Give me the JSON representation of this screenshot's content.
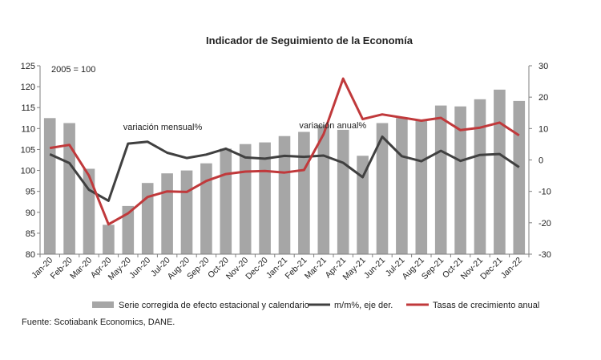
{
  "chart_data": {
    "type": "bar",
    "title": "Indicador de Seguimiento de la Economía",
    "base_note": "2005 = 100",
    "categories": [
      "Jan-20",
      "Feb-20",
      "Mar-20",
      "Apr-20",
      "May-20",
      "Jun-20",
      "Jul-20",
      "Aug-20",
      "Sep-20",
      "Oct-20",
      "Nov-20",
      "Dec-20",
      "Jan-21",
      "Feb-21",
      "Mar-21",
      "Apr-21",
      "May-21",
      "Jun-21",
      "Jul-21",
      "Aug-21",
      "Sep-21",
      "Oct-21",
      "Nov-21",
      "Dec-21",
      "Jan-22"
    ],
    "y_left": {
      "min": 80,
      "max": 125,
      "step": 5
    },
    "y_right": {
      "min": -30,
      "max": 30,
      "step": 10
    },
    "series": [
      {
        "name": "Serie corregida de efecto estacional y calendario",
        "kind": "bar",
        "axis": "left",
        "color": "#a6a6a6",
        "values": [
          112.5,
          111.3,
          100.4,
          87.0,
          91.5,
          97.0,
          99.3,
          100.0,
          101.7,
          105.2,
          106.3,
          106.7,
          108.2,
          109.2,
          110.8,
          109.7,
          103.5,
          111.3,
          112.5,
          112.1,
          115.5,
          115.3,
          117.0,
          119.3,
          116.6
        ]
      },
      {
        "name": "m/m%, eje der.",
        "kind": "line",
        "axis": "right",
        "color": "#404040",
        "values": [
          1.8,
          -1.0,
          -9.5,
          -13.0,
          5.2,
          5.8,
          2.3,
          0.6,
          1.7,
          3.6,
          0.8,
          0.4,
          1.3,
          1.0,
          1.4,
          -0.9,
          -5.5,
          7.4,
          1.2,
          -0.4,
          2.9,
          -0.3,
          1.6,
          1.9,
          -2.3
        ]
      },
      {
        "name": "Tasas de crecimiento anual",
        "kind": "line",
        "axis": "right",
        "color": "#c0393b",
        "values": [
          3.8,
          4.8,
          -5.0,
          -20.5,
          -17.0,
          -11.8,
          -10.0,
          -10.2,
          -6.7,
          -4.5,
          -3.7,
          -3.5,
          -4.0,
          -3.2,
          8.2,
          25.9,
          13.0,
          14.5,
          13.5,
          12.5,
          13.4,
          9.5,
          10.3,
          11.9,
          7.8
        ]
      }
    ],
    "annotations": [
      {
        "text": "variación mensual%",
        "series": 1,
        "anchor_index": 4,
        "side": "above"
      },
      {
        "text": "variación anual%",
        "series": 2,
        "anchor_index": 13,
        "side": "above"
      }
    ],
    "legend_position": "bottom",
    "grid": false,
    "source": "Fuente: Scotiabank Economics, DANE."
  }
}
